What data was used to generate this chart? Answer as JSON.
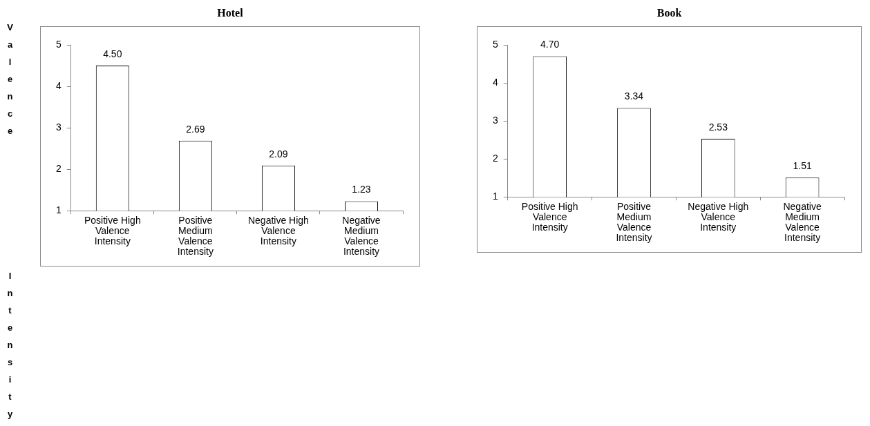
{
  "chart_data": [
    {
      "type": "bar",
      "title": "Hotel",
      "ylabel": "Valence Intensity",
      "categories": [
        "Positive High Valence Intensity",
        "Positive Medium Valence Intensity",
        "Negative High Valence Intensity",
        "Negative Medium Valence Intensity"
      ],
      "values": [
        4.5,
        2.69,
        2.09,
        1.23
      ],
      "value_labels": [
        "4.50",
        "2.69",
        "2.09",
        "1.23"
      ],
      "color": "#ffffff",
      "ylim": [
        1,
        5
      ],
      "yticks": [
        1,
        2,
        3,
        4,
        5
      ],
      "grid": false,
      "legend": false
    },
    {
      "type": "bar",
      "title": "Book",
      "categories": [
        "Positive High Valence Intensity",
        "Positive Medium Valence Intensity",
        "Negative High Valence Intensity",
        "Negative Medium Valence Intensity"
      ],
      "values": [
        4.7,
        3.34,
        2.53,
        1.51
      ],
      "value_labels": [
        "4.70",
        "3.34",
        "2.53",
        "1.51"
      ],
      "color": "#ffffff",
      "ylim": [
        1,
        5
      ],
      "yticks": [
        1,
        2,
        3,
        4,
        5
      ],
      "grid": false,
      "legend": false
    }
  ]
}
